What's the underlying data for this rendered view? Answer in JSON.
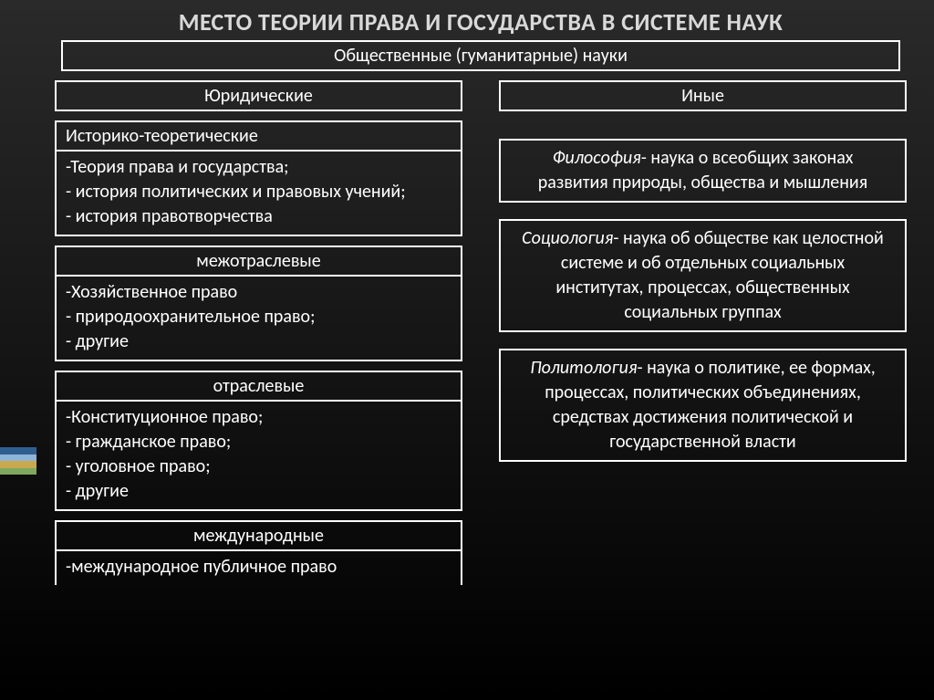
{
  "colors": {
    "bg_top": "#2a2a2a",
    "bg_bottom": "#000000",
    "text": "#ffffff",
    "title": "#d9d9d9",
    "border": "#ffffff",
    "accent1": "#2f5f8f",
    "accent2": "#8fb4d9",
    "accent3": "#c9a94f",
    "accent4": "#7fa85f"
  },
  "fonts": {
    "title_size": 26,
    "box_size": 20,
    "list_size": 20,
    "header_small": 20,
    "header_big": 24
  },
  "title": "МЕСТО ТЕОРИИ ПРАВА И ГОСУДАРСТВА В СИСТЕМЕ НАУК",
  "top": "Общественные (гуманитарные) науки",
  "left": {
    "header": "Юридические",
    "groups": [
      {
        "header": "Историко-теоретические",
        "body": "-Теория права и государства;\n- история политических и правовых учений;\n- история правотворчества"
      },
      {
        "header": "межотраслевые",
        "body": "-Хозяйственное право\n- природоохранительное право;\n- другие"
      },
      {
        "header": "отраслевые",
        "body": "-Конституционное право;\n- гражданское право;\n- уголовное право;\n- другие"
      },
      {
        "header": "международные",
        "body": "-международное публичное право"
      }
    ]
  },
  "right": {
    "header": "Иные",
    "items": [
      {
        "term": "Философия",
        "rest": "- наука о всеобщих законах развития природы, общества и мышления"
      },
      {
        "term": "Социология",
        "rest": "- наука об обществе как целостной системе и об отдельных социальных институтах, процессах, общественных социальных группах"
      },
      {
        "term": "Политология",
        "rest": "- наука о политике, ее формах, процессах, политических объединениях, средствах достижения политической и государственной власти"
      }
    ]
  }
}
